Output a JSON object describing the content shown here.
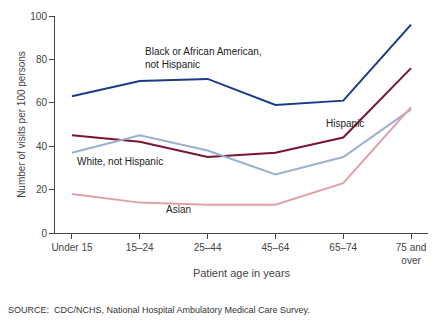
{
  "chart_data": {
    "type": "line",
    "categories": [
      "Under 15",
      "15–24",
      "25–44",
      "45–64",
      "65–74",
      "75 and\nover"
    ],
    "series": [
      {
        "values": [
          63,
          70,
          71,
          59,
          61,
          96
        ],
        "color": "#1a3a8a"
      },
      {
        "values": [
          45,
          42,
          35,
          37,
          44,
          76
        ],
        "color": "#7a1530"
      },
      {
        "values": [
          37,
          45,
          38,
          27,
          35,
          57
        ],
        "color": "#9ab0d0"
      },
      {
        "values": [
          18,
          14,
          13,
          13,
          23,
          58
        ],
        "color": "#e0a0a8"
      }
    ],
    "xlabel": "Patient age in years",
    "ylabel": "Number of visits per 100 persons",
    "ylim": [
      0,
      100
    ],
    "yticks": [
      0,
      20,
      40,
      60,
      80,
      100
    ],
    "grid": false,
    "annotations": [
      {
        "text": "Black or African American,",
        "x": 1.05,
        "y": 80
      },
      {
        "text": "not Hispanic",
        "x": 1.05,
        "y": 74
      },
      {
        "text": "Hispanic",
        "x": 3.72,
        "y": 47
      },
      {
        "text": "White, not Hispanic",
        "x": 0.05,
        "y": 29.5
      },
      {
        "text": "Asian",
        "x": 1.35,
        "y": 7.5
      },
      {
        "text": "SOURCE:  CDC/NCHS, National Hospital Ambulatory Medical Care Survey."
      }
    ]
  }
}
